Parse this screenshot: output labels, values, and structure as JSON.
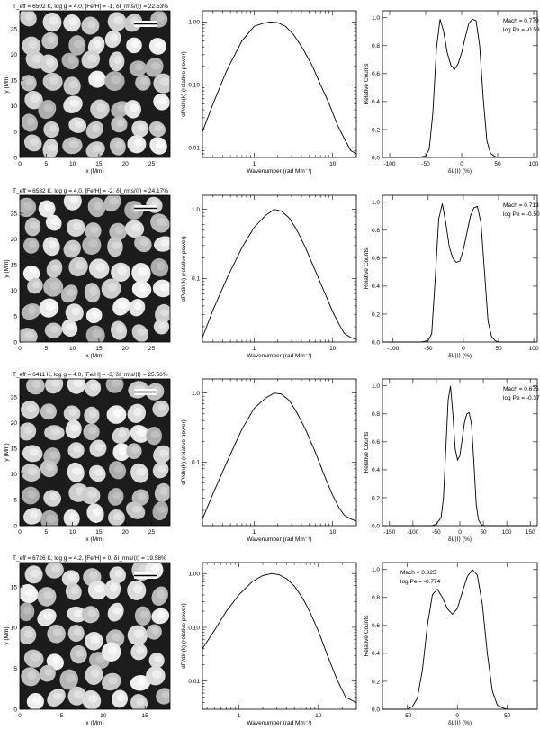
{
  "rows": [
    {
      "title": "T_eff = 6502 K, log g = 4.0, [Fe/H] = -1, δI_rms/⟨I⟩ = 22.53%",
      "image_panel": {
        "xlabel": "x (Mm)",
        "ylabel": "y (Mm)",
        "xlim": [
          0,
          28.5
        ],
        "ylim": [
          0,
          28.5
        ],
        "xticks": [
          0,
          5,
          10,
          15,
          20,
          25
        ],
        "yticks": [
          0,
          5,
          10,
          15,
          20,
          25
        ]
      },
      "spectrum_panel": {
        "type": "line",
        "xscale": "log",
        "yscale": "log",
        "xlabel": "Wavenumber (rad Mm⁻¹)",
        "ylabel": "dP/dln(k) (relative power)",
        "xlim": [
          0.22,
          20
        ],
        "ylim": [
          0.007,
          1.5
        ],
        "xticks": [
          {
            "v": 1,
            "label": "1"
          },
          {
            "v": 10,
            "label": "10"
          }
        ],
        "yticks": [
          {
            "v": 0.01,
            "label": "0.01"
          },
          {
            "v": 0.1,
            "label": "0.10"
          },
          {
            "v": 1,
            "label": "1.00"
          }
        ],
        "x": [
          0.22,
          0.3,
          0.45,
          0.7,
          1.0,
          1.3,
          1.6,
          2.0,
          2.5,
          3.2,
          4.2,
          5.5,
          7.0,
          9.0,
          11.5,
          14.0,
          17.0,
          20.0
        ],
        "y": [
          0.018,
          0.05,
          0.17,
          0.5,
          0.85,
          0.95,
          1.0,
          0.97,
          0.85,
          0.62,
          0.37,
          0.2,
          0.1,
          0.05,
          0.023,
          0.014,
          0.009,
          0.008
        ]
      },
      "histogram_panel": {
        "type": "line",
        "xlabel": "δI/⟨I⟩ (%)",
        "ylabel": "Relative Counts",
        "xlim": [
          -110,
          105
        ],
        "ylim": [
          0,
          1.05
        ],
        "xticks": [
          -100,
          -50,
          0,
          50,
          100
        ],
        "yticks": [
          0,
          0.2,
          0.4,
          0.6,
          0.8,
          1.0
        ],
        "annotation": [
          "Mach = 0.779",
          "log Pe = -0.596"
        ],
        "annotation_pos": "top-right",
        "x": [
          -100,
          -60,
          -50,
          -45,
          -40,
          -35,
          -30,
          -25,
          -20,
          -15,
          -10,
          -5,
          0,
          5,
          10,
          15,
          20,
          25,
          30,
          35,
          40,
          45,
          50,
          60,
          100
        ],
        "y": [
          0,
          0,
          0.01,
          0.06,
          0.32,
          0.78,
          0.99,
          0.9,
          0.75,
          0.66,
          0.63,
          0.67,
          0.75,
          0.86,
          0.96,
          0.99,
          0.98,
          0.8,
          0.42,
          0.12,
          0.03,
          0.01,
          0,
          0,
          0
        ]
      }
    },
    {
      "title": "T_eff = 6532 K, log g = 4.0, [Fe/H] = -2, δI_rms/⟨I⟩ = 24.17%",
      "image_panel": {
        "xlabel": "x (Mm)",
        "ylabel": "y (Mm)",
        "xlim": [
          0,
          28.5
        ],
        "ylim": [
          0,
          28.5
        ],
        "xticks": [
          0,
          5,
          10,
          15,
          20,
          25
        ],
        "yticks": [
          0,
          5,
          10,
          15,
          20,
          25
        ]
      },
      "spectrum_panel": {
        "type": "line",
        "xscale": "log",
        "yscale": "log",
        "xlabel": "Wavenumber (rad Mm⁻¹)",
        "ylabel": "dP/dln(k) (relative power)",
        "xlim": [
          0.22,
          20
        ],
        "ylim": [
          0.012,
          1.6
        ],
        "xticks": [
          {
            "v": 1,
            "label": "1"
          },
          {
            "v": 10,
            "label": "10"
          }
        ],
        "yticks": [
          {
            "v": 0.1,
            "label": "0.1"
          },
          {
            "v": 1,
            "label": "1.0"
          }
        ],
        "x": [
          0.22,
          0.3,
          0.45,
          0.7,
          1.0,
          1.4,
          1.8,
          2.2,
          2.8,
          3.5,
          4.5,
          6.0,
          8.0,
          10.0,
          12.0,
          14.0,
          17.0,
          20.0
        ],
        "y": [
          0.014,
          0.035,
          0.1,
          0.28,
          0.55,
          0.82,
          1.0,
          0.95,
          0.75,
          0.5,
          0.28,
          0.13,
          0.06,
          0.033,
          0.022,
          0.016,
          0.014,
          0.013
        ]
      },
      "histogram_panel": {
        "type": "line",
        "xlabel": "δI/⟨I⟩ (%)",
        "ylabel": "Relative Counts",
        "xlim": [
          -115,
          105
        ],
        "ylim": [
          0,
          1.05
        ],
        "xticks": [
          -100,
          -50,
          0,
          50,
          100
        ],
        "yticks": [
          0,
          0.2,
          0.4,
          0.6,
          0.8,
          1.0
        ],
        "annotation": [
          "Mach = 0.713",
          "log Pe = -0.503"
        ],
        "annotation_pos": "top-right",
        "x": [
          -110,
          -60,
          -50,
          -45,
          -40,
          -35,
          -30,
          -25,
          -20,
          -15,
          -10,
          -5,
          0,
          5,
          10,
          15,
          20,
          25,
          30,
          35,
          40,
          45,
          50,
          60,
          100
        ],
        "y": [
          0,
          0,
          0.01,
          0.06,
          0.45,
          0.88,
          0.99,
          0.85,
          0.68,
          0.6,
          0.57,
          0.58,
          0.66,
          0.78,
          0.9,
          0.96,
          0.97,
          0.85,
          0.5,
          0.15,
          0.04,
          0.01,
          0,
          0,
          0
        ]
      }
    },
    {
      "title": "T_eff = 6411 K, log g = 4.0, [Fe/H] = -3, δI_rms/⟨I⟩ = 25.56%",
      "image_panel": {
        "xlabel": "x (Mm)",
        "ylabel": "y (Mm)",
        "xlim": [
          0,
          28.5
        ],
        "ylim": [
          0,
          28.5
        ],
        "xticks": [
          0,
          5,
          10,
          15,
          20,
          25
        ],
        "yticks": [
          0,
          5,
          10,
          15,
          20,
          25
        ]
      },
      "spectrum_panel": {
        "type": "line",
        "xscale": "log",
        "yscale": "log",
        "xlabel": "Wavenumber (rad Mm⁻¹)",
        "ylabel": "dP/dln(k) (relative power)",
        "xlim": [
          0.22,
          20
        ],
        "ylim": [
          0.012,
          1.6
        ],
        "xticks": [
          {
            "v": 1,
            "label": "1"
          },
          {
            "v": 10,
            "label": "10"
          }
        ],
        "yticks": [
          {
            "v": 0.1,
            "label": "0.1"
          },
          {
            "v": 1,
            "label": "1.0"
          }
        ],
        "x": [
          0.22,
          0.3,
          0.45,
          0.7,
          1.0,
          1.4,
          1.8,
          2.2,
          2.8,
          3.5,
          4.5,
          6.0,
          8.0,
          10.0,
          12.0,
          14.0,
          17.0,
          20.0
        ],
        "y": [
          0.015,
          0.035,
          0.1,
          0.3,
          0.6,
          0.85,
          1.0,
          0.97,
          0.78,
          0.52,
          0.3,
          0.14,
          0.06,
          0.033,
          0.022,
          0.017,
          0.015,
          0.014
        ]
      },
      "histogram_panel": {
        "type": "line",
        "xlabel": "δI/⟨I⟩ (%)",
        "ylabel": "Relative Counts",
        "xlim": [
          -165,
          165
        ],
        "ylim": [
          0,
          1.05
        ],
        "xticks": [
          -150,
          -100,
          -50,
          0,
          50,
          100,
          150
        ],
        "yticks": [
          0,
          0.2,
          0.4,
          0.6,
          0.8,
          1.0
        ],
        "annotation": [
          "Mach = 0.675",
          "log Pe = -0.371"
        ],
        "annotation_pos": "top-right",
        "x": [
          -150,
          -60,
          -50,
          -40,
          -35,
          -30,
          -25,
          -20,
          -15,
          -10,
          -5,
          0,
          5,
          10,
          15,
          20,
          25,
          30,
          35,
          40,
          45,
          50,
          60,
          150
        ],
        "y": [
          0,
          0,
          0.01,
          0.06,
          0.2,
          0.55,
          0.9,
          1.0,
          0.8,
          0.55,
          0.47,
          0.5,
          0.62,
          0.74,
          0.8,
          0.81,
          0.72,
          0.45,
          0.15,
          0.04,
          0.01,
          0,
          0,
          0
        ]
      }
    },
    {
      "title": "T_eff = 6726 K, log g = 4.2, [Fe/H] = 0, δI_rms/⟨I⟩ = 19.58%",
      "image_panel": {
        "xlabel": "x (Mm)",
        "ylabel": "y (Mm)",
        "xlim": [
          0,
          18
        ],
        "ylim": [
          0,
          18
        ],
        "xticks": [
          0,
          5,
          10,
          15
        ],
        "yticks": [
          0,
          5,
          10,
          15
        ]
      },
      "spectrum_panel": {
        "type": "line",
        "xscale": "log",
        "yscale": "log",
        "xlabel": "Wavenumber (rad Mm⁻¹)",
        "ylabel": "dP/dln(k) (relative power)",
        "xlim": [
          0.35,
          30
        ],
        "ylim": [
          0.003,
          1.6
        ],
        "xticks": [
          {
            "v": 1,
            "label": "1"
          },
          {
            "v": 10,
            "label": "10"
          }
        ],
        "yticks": [
          {
            "v": 0.01,
            "label": "0.01"
          },
          {
            "v": 0.1,
            "label": "0.10"
          },
          {
            "v": 1,
            "label": "1.00"
          }
        ],
        "x": [
          0.35,
          0.5,
          0.7,
          1.0,
          1.5,
          2.0,
          2.6,
          3.2,
          4.0,
          5.0,
          6.5,
          8.0,
          10.0,
          13.0,
          17.0,
          22.0,
          30.0
        ],
        "y": [
          0.04,
          0.09,
          0.2,
          0.4,
          0.72,
          0.92,
          1.0,
          0.95,
          0.8,
          0.58,
          0.33,
          0.18,
          0.085,
          0.03,
          0.011,
          0.005,
          0.004
        ]
      },
      "histogram_panel": {
        "type": "line",
        "xlabel": "δI/⟨I⟩ (%)",
        "ylabel": "Relative Counts",
        "xlim": [
          -75,
          80
        ],
        "ylim": [
          0,
          1.05
        ],
        "xticks": [
          -50,
          0,
          50
        ],
        "yticks": [
          0,
          0.2,
          0.4,
          0.6,
          0.8,
          1.0
        ],
        "annotation": [
          "Mach = 0.825",
          "log Pe = -0.774"
        ],
        "annotation_pos": "top-left",
        "x": [
          -75,
          -50,
          -45,
          -40,
          -35,
          -30,
          -25,
          -20,
          -15,
          -10,
          -5,
          0,
          5,
          10,
          15,
          20,
          25,
          30,
          35,
          40,
          45,
          50,
          80
        ],
        "y": [
          0,
          0,
          0.02,
          0.08,
          0.28,
          0.6,
          0.82,
          0.86,
          0.8,
          0.72,
          0.68,
          0.72,
          0.84,
          0.95,
          1.0,
          0.96,
          0.75,
          0.4,
          0.13,
          0.03,
          0.01,
          0,
          0
        ]
      }
    }
  ]
}
